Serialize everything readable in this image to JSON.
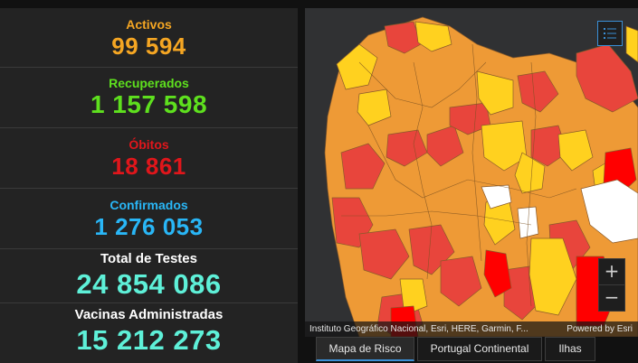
{
  "colors": {
    "activos": "#f5a623",
    "recuperados": "#5ee01e",
    "obitos": "#e0161b",
    "confirmados": "#29b6f6",
    "testes_label": "#ffffff",
    "testes_value": "#5ef0d8",
    "vacinas_label": "#ffffff",
    "vacinas_value": "#5ef0d8",
    "risk_very_high": "#ff0000",
    "risk_high": "#e8453c",
    "risk_medium": "#ee9a36",
    "risk_low": "#ffd11f",
    "no_data": "#ffffff",
    "map_background": "#303133"
  },
  "stats": {
    "activos": {
      "label": "Activos",
      "value": "99 594"
    },
    "recuperados": {
      "label": "Recuperados",
      "value": "1 157 598"
    },
    "obitos": {
      "label": "Óbitos",
      "value": "18 861"
    },
    "confirmados": {
      "label": "Confirmados",
      "value": "1 276 053"
    },
    "testes": {
      "label": "Total de Testes",
      "value": "24 854 086"
    },
    "vacinas": {
      "label": "Vacinas Administradas",
      "value": "15 212 273"
    }
  },
  "map": {
    "attribution": "Instituto Geográfico Nacional, Esri, HERE, Garmin, F...",
    "powered_by": "Powered by Esri",
    "legend_icon": "legend-list-icon",
    "zoom_in": "+",
    "zoom_out": "−"
  },
  "tabs": [
    {
      "label": "Mapa de Risco",
      "active": true
    },
    {
      "label": "Portugal Continental",
      "active": false
    },
    {
      "label": "Ilhas",
      "active": false
    }
  ]
}
